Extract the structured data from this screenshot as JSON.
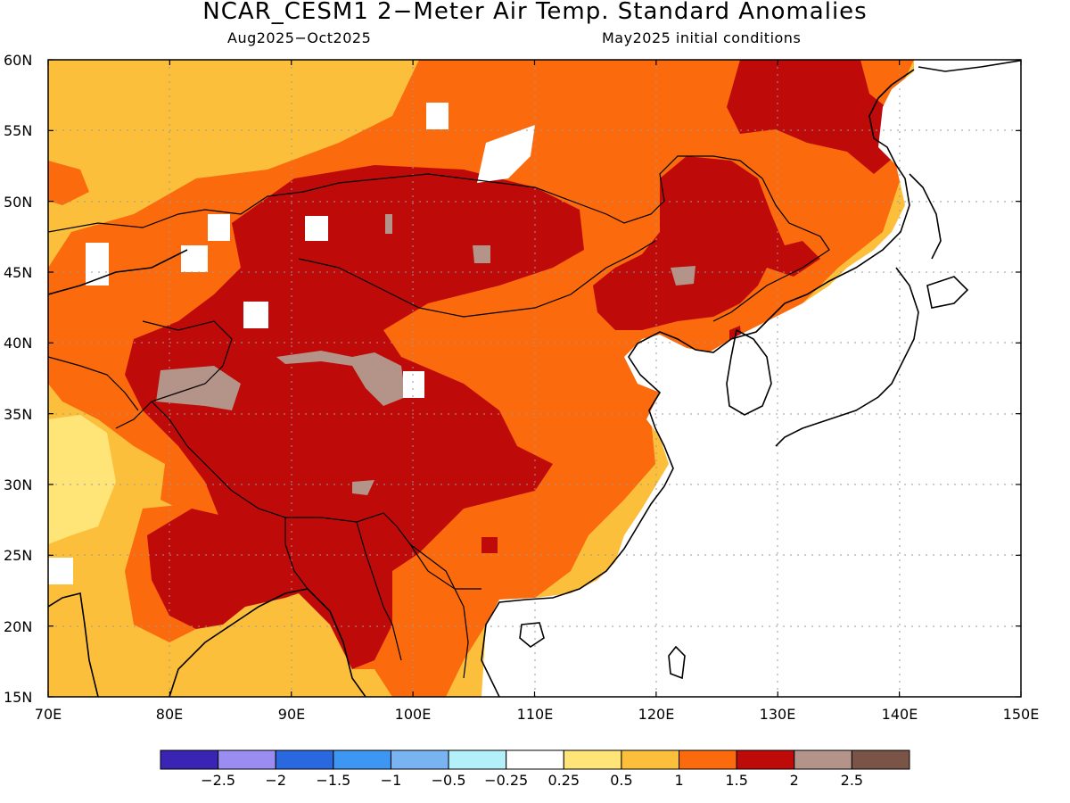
{
  "title": "NCAR_CESM1 2−Meter Air Temp. Standard Anomalies",
  "subtitle_left": "Aug2025−Oct2025",
  "subtitle_right": "May2025 initial conditions",
  "map": {
    "lon_range": [
      70,
      150
    ],
    "lat_range": [
      15,
      60
    ],
    "lon_ticks": [
      "70E",
      "80E",
      "90E",
      "100E",
      "110E",
      "120E",
      "130E",
      "140E",
      "150E"
    ],
    "lat_ticks": [
      "60N",
      "55N",
      "50N",
      "45N",
      "40N",
      "35N",
      "30N",
      "25N",
      "20N",
      "15N"
    ],
    "grid": "dotted"
  },
  "colorbar": {
    "colors": [
      "#3a24b4",
      "#9a8cf0",
      "#2a68e0",
      "#3c96f2",
      "#78b4f2",
      "#b4f0fa",
      "#ffffff",
      "#ffe478",
      "#fbbf3c",
      "#fb6a0c",
      "#bf0a0a",
      "#b49488",
      "#7a5446"
    ],
    "labels": [
      "−2.5",
      "−2",
      "−1.5",
      "−1",
      "−0.5",
      "−0.25",
      "0.25",
      "0.5",
      "1",
      "1.5",
      "2",
      "2.5"
    ]
  }
}
